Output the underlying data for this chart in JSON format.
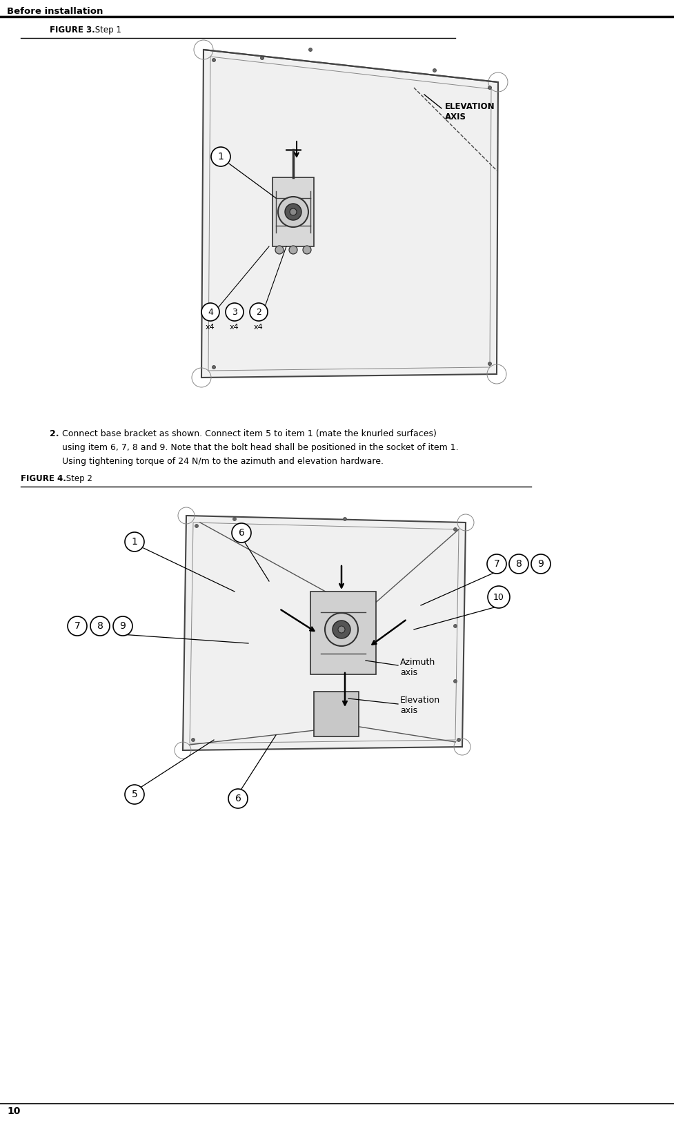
{
  "bg_color": "#ffffff",
  "header_text": "Before installation",
  "figure3_label_bold": "FIGURE 3.",
  "figure3_label_normal": " Step 1",
  "figure4_label_bold": "FIGURE 4.",
  "figure4_label_normal": " Step 2",
  "step2_line1": "2. Connect base bracket as shown. Connect item 5 to item 1 (mate the knurled surfaces)",
  "step2_line2": "    using item 6, 7, 8 and 9. Note that the bolt head shall be positioned in the socket of item 1.",
  "step2_line3": "    Using tightening torque of 24 N/m to the azimuth and elevation hardware.",
  "page_number": "10",
  "elevation_axis_label": "ELEVATION\nAXIS",
  "azimuth_axis_label": "Azimuth\naxis",
  "elevation_axis_label2": "Elevation\naxis",
  "line_color": "#000000",
  "panel_color": "#aaaaaa",
  "draw_color": "#333333"
}
